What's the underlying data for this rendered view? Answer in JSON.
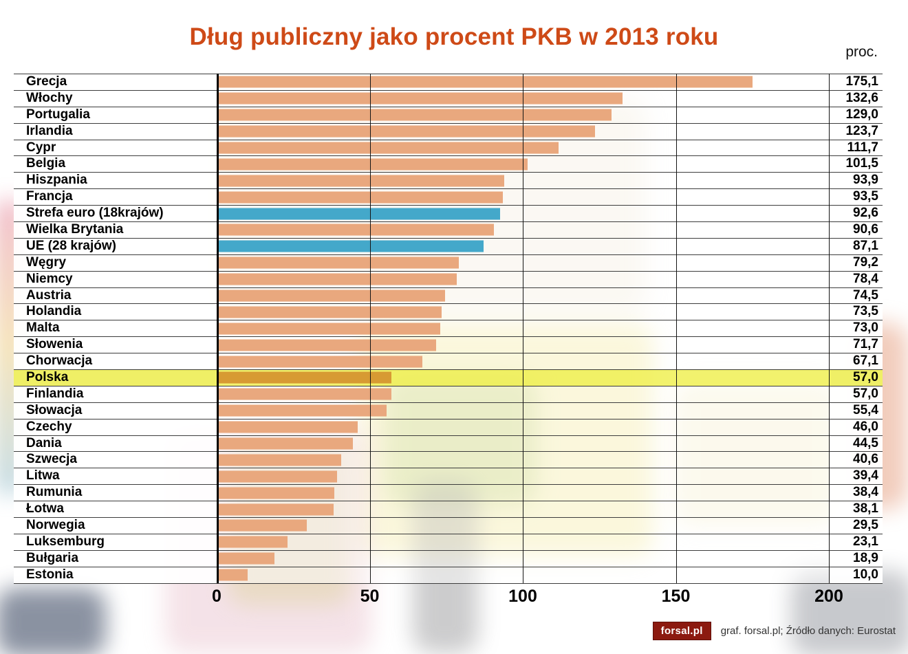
{
  "title": "Dług publiczny jako procent PKB w 2013 roku",
  "unit_label": "proc.",
  "axis": {
    "ticks": [
      "0",
      "50",
      "100",
      "150",
      "200"
    ]
  },
  "footer": {
    "logo_text": "forsal.pl",
    "credit": "graf. forsal.pl; Źródło danych: Eurostat"
  },
  "colors": {
    "title": "#ce4a17",
    "bar": "#e9a87e",
    "bar_eu_blue": "#44a8ca",
    "bar_poland": "#d79a33",
    "highlight_row": "#efef66",
    "logo_bg": "#8c1a10",
    "gridline": "#141414"
  },
  "chart_data": {
    "type": "bar",
    "orientation": "horizontal",
    "title": "Dług publiczny jako procent PKB w 2013 roku",
    "xlabel": "proc.",
    "ylabel": "",
    "xlim": [
      0,
      200
    ],
    "ticks": [
      0,
      50,
      100,
      150,
      200
    ],
    "grid": true,
    "legend": false,
    "categories": [
      "Grecja",
      "Włochy",
      "Portugalia",
      "Irlandia",
      "Cypr",
      "Belgia",
      "Hiszpania",
      "Francja",
      "Strefa euro (18krajów)",
      "Wielka Brytania",
      "UE (28 krajów)",
      "Węgry",
      "Niemcy",
      "Austria",
      "Holandia",
      "Malta",
      "Słowenia",
      "Chorwacja",
      "Polska",
      "Finlandia",
      "Słowacja",
      "Czechy",
      "Dania",
      "Szwecja",
      "Litwa",
      "Rumunia",
      "Łotwa",
      "Norwegia",
      "Luksemburg",
      "Bułgaria",
      "Estonia"
    ],
    "values": [
      175.1,
      132.6,
      129.0,
      123.7,
      111.7,
      101.5,
      93.9,
      93.5,
      92.6,
      90.6,
      87.1,
      79.2,
      78.4,
      74.5,
      73.5,
      73.0,
      71.7,
      67.1,
      57.0,
      57.0,
      55.4,
      46.0,
      44.5,
      40.6,
      39.4,
      38.4,
      38.1,
      29.5,
      23.1,
      18.9,
      10.0
    ],
    "value_labels": [
      "175,1",
      "132,6",
      "129,0",
      "123,7",
      "111,7",
      "101,5",
      "93,9",
      "93,5",
      "92,6",
      "90,6",
      "87,1",
      "79,2",
      "78,4",
      "74,5",
      "73,5",
      "73,0",
      "71,7",
      "67,1",
      "57,0",
      "57,0",
      "55,4",
      "46,0",
      "44,5",
      "40,6",
      "39,4",
      "38,4",
      "38,1",
      "29,5",
      "23,1",
      "18,9",
      "10,0"
    ],
    "row_styles": [
      "",
      "",
      "",
      "",
      "",
      "",
      "",
      "",
      "eu",
      "",
      "eu",
      "",
      "",
      "",
      "",
      "",
      "",
      "",
      "poland",
      "",
      "",
      "",
      "",
      "",
      "",
      "",
      "",
      "",
      "",
      "",
      ""
    ]
  }
}
